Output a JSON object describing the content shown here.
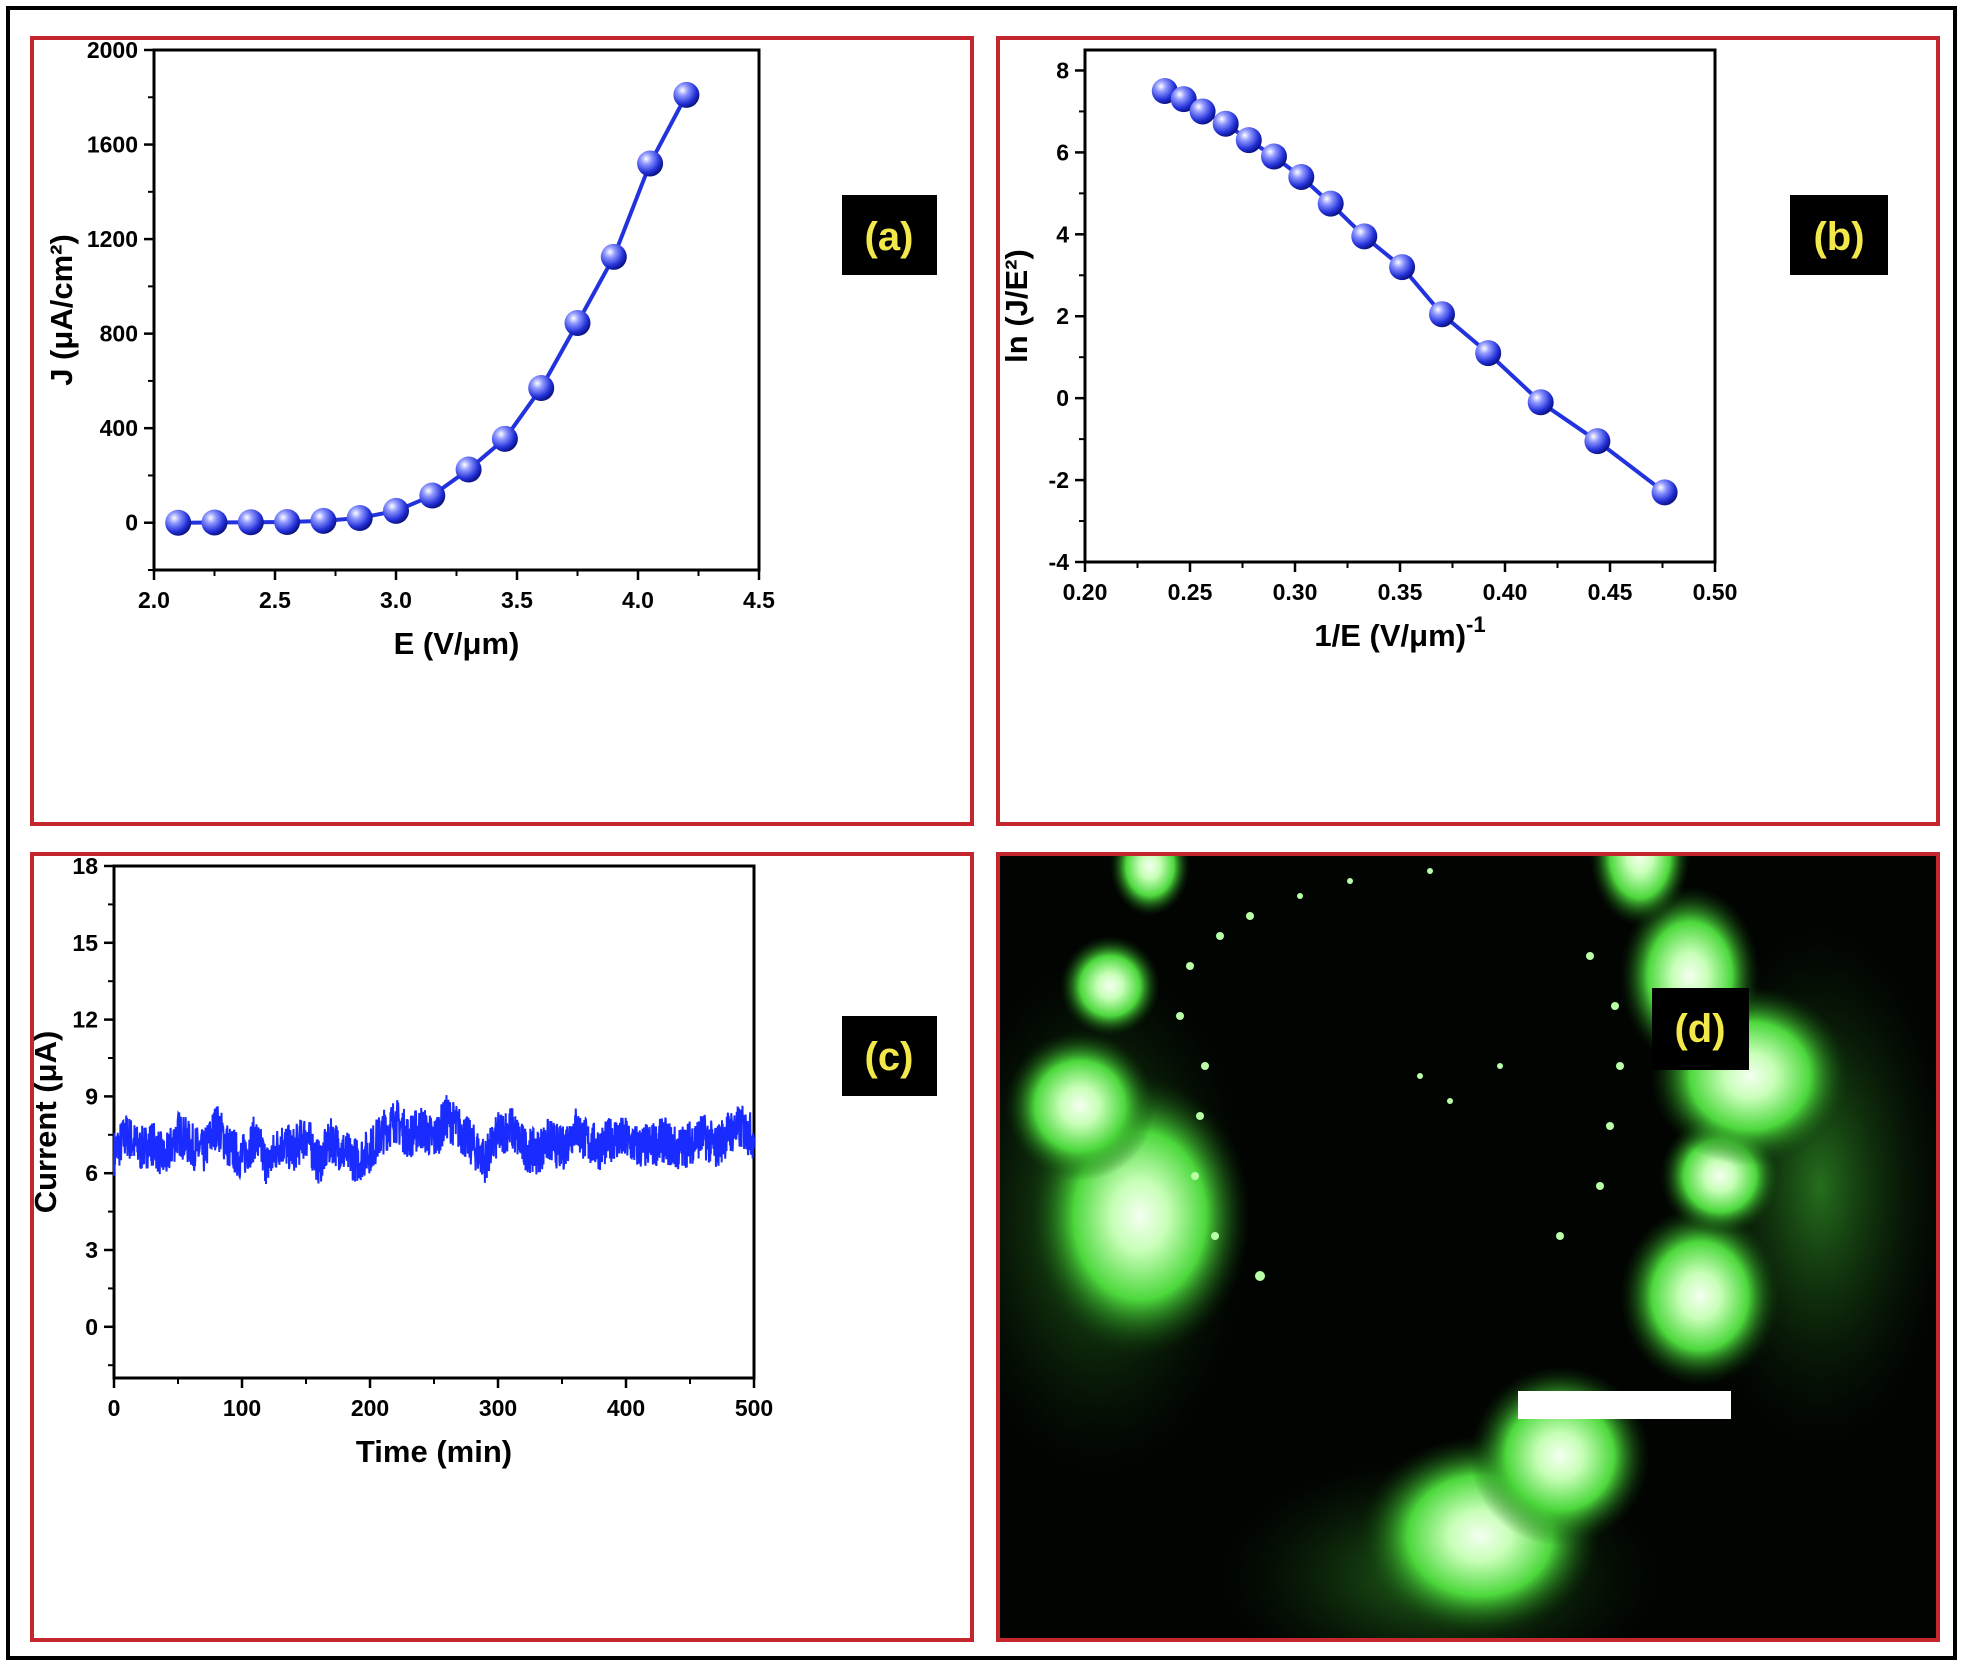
{
  "chart_data": [
    {
      "panel": "(a)",
      "type": "line",
      "xlabel": "E (V/μm)",
      "ylabel": "J (μA/cm²)",
      "xlim": [
        2.0,
        4.5
      ],
      "ylim": [
        -200,
        2000
      ],
      "xticks": [
        "2.0",
        "2.5",
        "3.0",
        "3.5",
        "4.0",
        "4.5"
      ],
      "yticks": [
        "0",
        "400",
        "800",
        "1200",
        "1600",
        "2000"
      ],
      "series": [
        {
          "x": [
            2.1,
            2.25,
            2.4,
            2.55,
            2.7,
            2.85,
            3.0,
            3.15,
            3.3,
            3.45,
            3.6,
            3.75,
            3.9,
            4.05,
            4.2
          ],
          "y": [
            0,
            1,
            2,
            3,
            8,
            20,
            50,
            115,
            225,
            355,
            570,
            845,
            1125,
            1520,
            1810
          ]
        }
      ],
      "marker": "sphere",
      "color": "#2233dd",
      "grid": false
    },
    {
      "panel": "(b)",
      "type": "line",
      "xlabel": "1/E (V/μm)",
      "xlabel_sup": "-1",
      "ylabel": "ln (J/E²)",
      "xlim": [
        0.2,
        0.5
      ],
      "ylim": [
        -4,
        8.5
      ],
      "xticks": [
        "0.20",
        "0.25",
        "0.30",
        "0.35",
        "0.40",
        "0.45",
        "0.50"
      ],
      "yticks": [
        "-4",
        "-2",
        "0",
        "2",
        "4",
        "6",
        "8"
      ],
      "series": [
        {
          "x": [
            0.238,
            0.247,
            0.256,
            0.267,
            0.278,
            0.29,
            0.303,
            0.317,
            0.333,
            0.351,
            0.37,
            0.392,
            0.417,
            0.444,
            0.476
          ],
          "y": [
            7.5,
            7.3,
            7.0,
            6.7,
            6.3,
            5.9,
            5.4,
            4.75,
            3.95,
            3.2,
            2.05,
            1.1,
            -0.1,
            -1.05,
            -2.3
          ]
        }
      ],
      "marker": "sphere",
      "color": "#2233dd",
      "grid": false
    },
    {
      "panel": "(c)",
      "type": "line",
      "xlabel": "Time (min)",
      "ylabel": "Current (μA)",
      "xlim": [
        0,
        500
      ],
      "ylim": [
        -2,
        18
      ],
      "xticks": [
        "0",
        "100",
        "200",
        "300",
        "400",
        "500"
      ],
      "yticks": [
        "0",
        "3",
        "6",
        "9",
        "12",
        "15",
        "18"
      ],
      "series": [
        {
          "x": [
            0,
            10,
            20,
            30,
            40,
            50,
            60,
            70,
            80,
            90,
            100,
            110,
            120,
            130,
            140,
            150,
            160,
            170,
            180,
            190,
            200,
            210,
            220,
            230,
            240,
            250,
            260,
            270,
            280,
            290,
            300,
            310,
            320,
            330,
            340,
            350,
            360,
            370,
            380,
            390,
            400,
            410,
            420,
            430,
            440,
            450,
            460,
            470,
            480,
            490,
            500
          ],
          "y": [
            6.8,
            7.5,
            6.9,
            7.2,
            6.5,
            7.6,
            7.1,
            6.8,
            7.9,
            7.0,
            6.6,
            7.4,
            6.3,
            7.2,
            6.9,
            7.5,
            6.4,
            7.3,
            6.8,
            6.5,
            6.9,
            7.6,
            8.1,
            7.4,
            7.8,
            7.3,
            8.2,
            7.7,
            7.1,
            6.5,
            7.5,
            7.8,
            7.0,
            6.8,
            7.3,
            6.9,
            7.8,
            7.2,
            7.0,
            7.4,
            7.3,
            7.0,
            7.1,
            7.3,
            6.9,
            7.2,
            7.5,
            7.0,
            7.6,
            7.8,
            7.4
          ],
          "noise": 0.9
        }
      ],
      "color": "#1a2bff",
      "grid": false
    }
  ],
  "panels": {
    "a": {
      "label": "(a)"
    },
    "b": {
      "label": "(b)"
    },
    "c": {
      "label": "(c)"
    },
    "d": {
      "label": "(d)"
    }
  }
}
